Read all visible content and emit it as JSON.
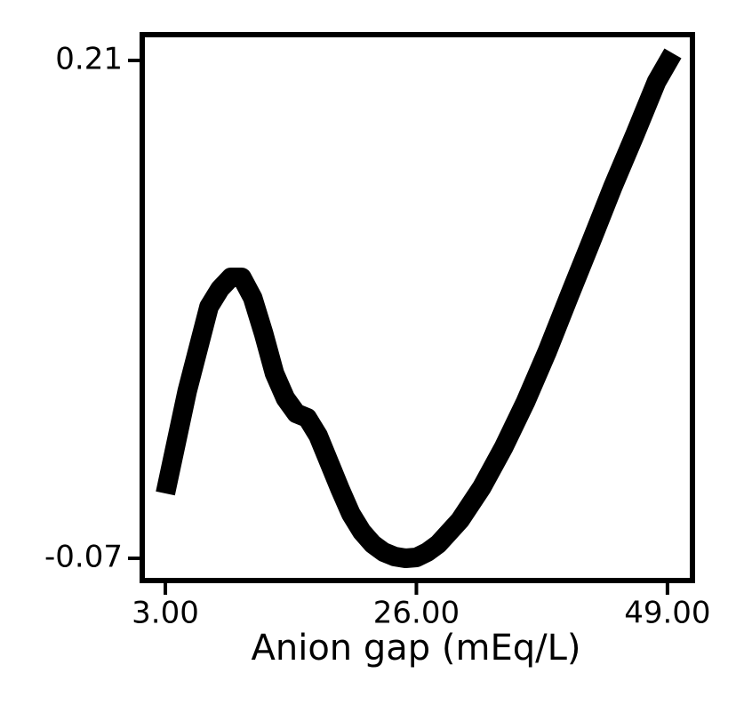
{
  "chart_data": {
    "type": "line",
    "x_label": "Anion gap (mEq/L)",
    "x": [
      3,
      5,
      7,
      8,
      9,
      10,
      11,
      12,
      13,
      14,
      15,
      16,
      17,
      18,
      19,
      20,
      21,
      22,
      23,
      24,
      25,
      26,
      27,
      28,
      30,
      32,
      34,
      36,
      38,
      40,
      42,
      44,
      46,
      48,
      49.5
    ],
    "series": [
      {
        "color": "#000000",
        "values": [
          -0.0335,
          0.024,
          0.0715,
          0.0815,
          0.088,
          0.088,
          0.0765,
          0.0565,
          0.034,
          0.02,
          0.0115,
          0.009,
          -0.001,
          -0.016,
          -0.031,
          -0.045,
          -0.055,
          -0.062,
          -0.0665,
          -0.069,
          -0.07,
          -0.0695,
          -0.0665,
          -0.062,
          -0.0485,
          -0.03,
          -0.0075,
          0.018,
          0.0465,
          0.0775,
          0.108,
          0.139,
          0.168,
          0.198,
          0.214
        ]
      }
    ],
    "xlim": [
      0.88,
      51.29
    ],
    "ylim": [
      -0.0825,
      0.2245
    ],
    "xticks": [
      {
        "value": 3,
        "label": "3.00"
      },
      {
        "value": 26,
        "label": "26.00"
      },
      {
        "value": 49,
        "label": "49.00"
      }
    ],
    "yticks": [
      0.21,
      -0.07
    ]
  }
}
